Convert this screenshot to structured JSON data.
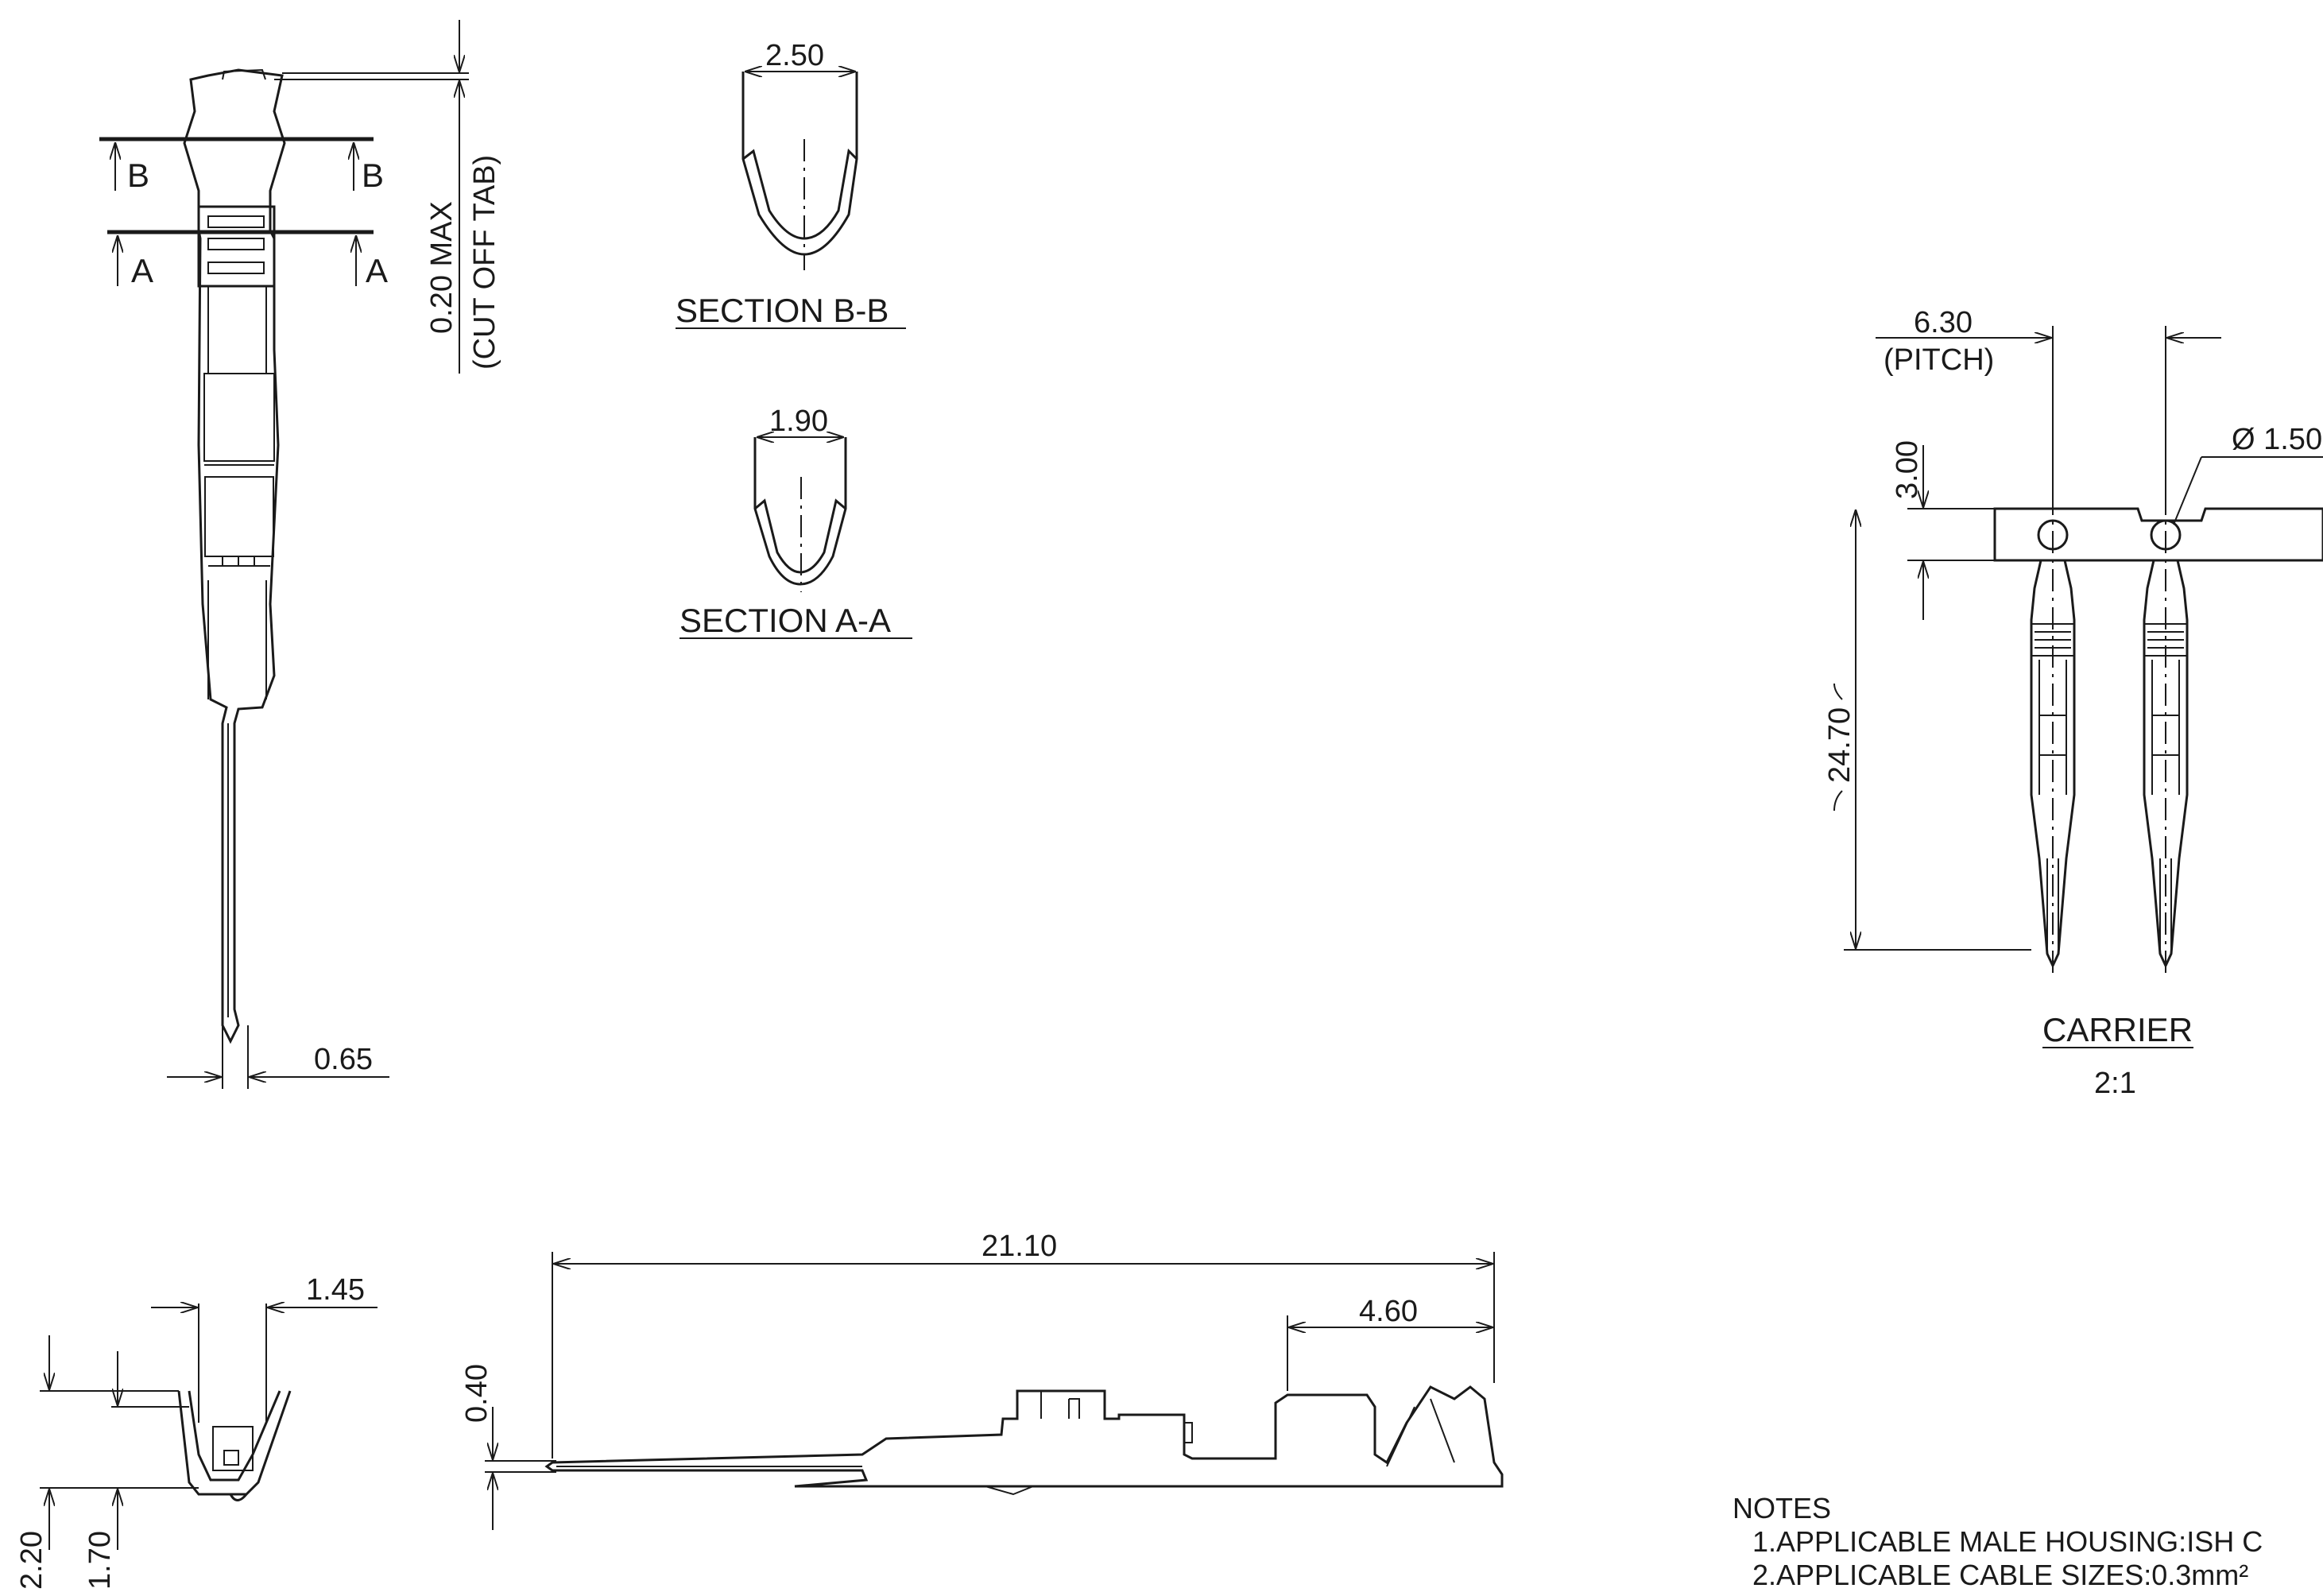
{
  "section_views": [
    {
      "title": "SECTION B-B",
      "width_dim": "2.50"
    },
    {
      "title": "SECTION A-A",
      "width_dim": "1.90"
    }
  ],
  "front_view": {
    "section_marks": [
      "B",
      "B",
      "A",
      "A"
    ],
    "cutoff_dim": "0.20 MAX",
    "cutoff_note": "(CUT OFF TAB)",
    "pin_width_dim": "0.65"
  },
  "carrier_view": {
    "pitch_dim": "6.30",
    "pitch_label": "(PITCH)",
    "hole_dim": "Ø 1.50",
    "strip_dim": "3.00",
    "overall_dim": "24.70",
    "title": "CARRIER",
    "scale": "2:1"
  },
  "end_view": {
    "width_dim": "1.45",
    "outer_height_dim": "2.20",
    "inner_height_dim": "1.70"
  },
  "side_view": {
    "length_dim": "21.10",
    "crimp_dim": "4.60",
    "pin_height_dim": "0.40"
  },
  "notes": {
    "heading": "NOTES",
    "items": [
      "1.APPLICABLE MALE HOUSING:ISH C",
      "2.APPLICABLE CABLE SIZES:0.3mm²"
    ]
  }
}
